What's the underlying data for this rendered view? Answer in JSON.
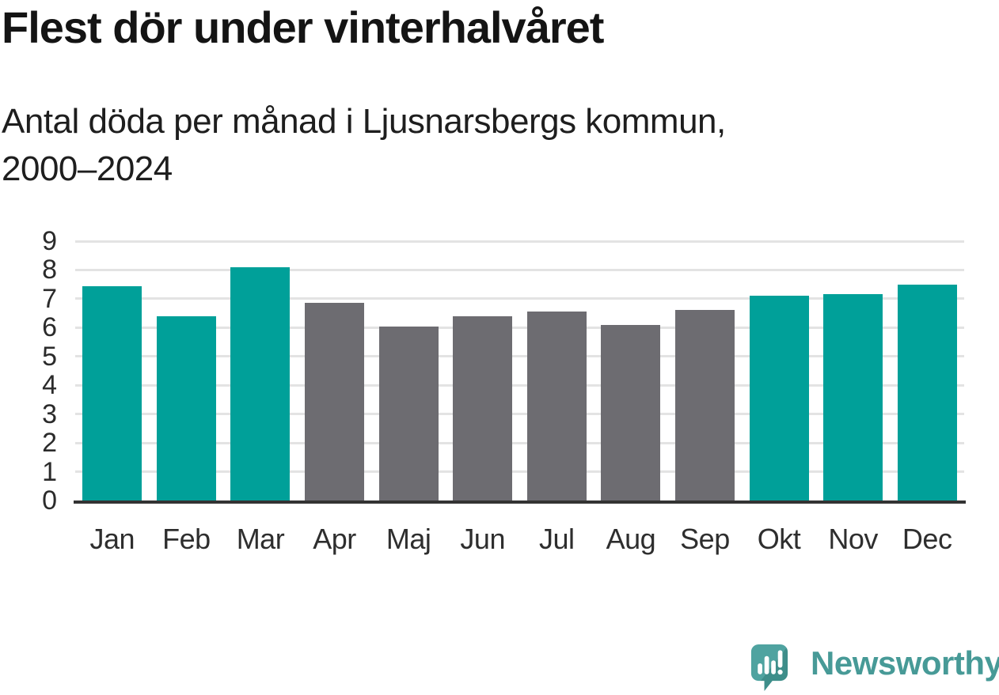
{
  "title": "Flest dör under vinterhalvåret",
  "subtitle": {
    "lines": [
      "Antal döda per månad i Ljusnarsbergs kommun,",
      "2000–2024"
    ]
  },
  "branding": {
    "name": "Newsworthy",
    "logo_icon": "speech-bubble-with-bar-chart-and-exclamation",
    "text_color": "#479a97",
    "bubble_color": "#4fa3a0",
    "bubble_shadow_color": "#3e8e8a"
  },
  "colors": {
    "highlight": "#00a099",
    "muted": "#6d6c71",
    "gridline": "#e3e3e3",
    "axis_line": "#333333",
    "title_text": "#141414",
    "tick_text": "#2b2b2b"
  },
  "chart_data": {
    "type": "bar",
    "title": "Flest dör under vinterhalvåret",
    "subtitle": "Antal döda per månad i Ljusnarsbergs kommun, 2000–2024",
    "categories": [
      "Jan",
      "Feb",
      "Mar",
      "Apr",
      "Maj",
      "Jun",
      "Jul",
      "Aug",
      "Sep",
      "Okt",
      "Nov",
      "Dec"
    ],
    "values": [
      7.45,
      6.4,
      8.1,
      6.85,
      6.05,
      6.4,
      6.55,
      6.1,
      6.6,
      7.1,
      7.15,
      7.5
    ],
    "highlighted": [
      true,
      true,
      true,
      false,
      false,
      false,
      false,
      false,
      false,
      true,
      true,
      true
    ],
    "highlight_color": "#00a099",
    "base_color": "#6d6c71",
    "xlabel": "",
    "ylabel": "",
    "ylim": [
      0,
      9
    ],
    "yticks": [
      0,
      1,
      2,
      3,
      4,
      5,
      6,
      7,
      8,
      9
    ],
    "grid": true,
    "legend": false
  }
}
